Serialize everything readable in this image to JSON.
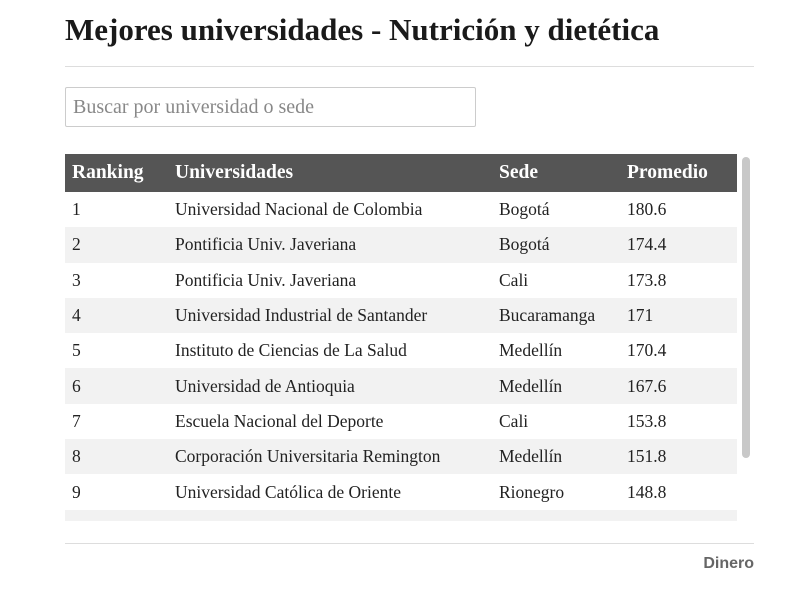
{
  "header": {
    "title": "Mejores universidades - Nutrición y dietética"
  },
  "search": {
    "placeholder": "Buscar por universidad o sede"
  },
  "table": {
    "columns": [
      "Ranking",
      "Universidades",
      "Sede",
      "Promedio"
    ],
    "rows": [
      [
        "1",
        "Universidad Nacional de Colombia",
        "Bogotá",
        "180.6"
      ],
      [
        "2",
        "Pontificia Univ. Javeriana",
        "Bogotá",
        "174.4"
      ],
      [
        "3",
        "Pontificia Univ. Javeriana",
        "Cali",
        "173.8"
      ],
      [
        "4",
        "Universidad Industrial de Santander",
        "Bucaramanga",
        "171"
      ],
      [
        "5",
        "Instituto de Ciencias de La Salud",
        "Medellín",
        "170.4"
      ],
      [
        "6",
        "Universidad de Antioquia",
        "Medellín",
        "167.6"
      ],
      [
        "7",
        "Escuela Nacional del Deporte",
        "Cali",
        "153.8"
      ],
      [
        "8",
        "Corporación Universitaria Remington",
        "Medellín",
        "151.8"
      ],
      [
        "9",
        "Universidad Católica de Oriente",
        "Rionegro",
        "148.8"
      ]
    ]
  },
  "footer": {
    "logo": "Dinero"
  }
}
